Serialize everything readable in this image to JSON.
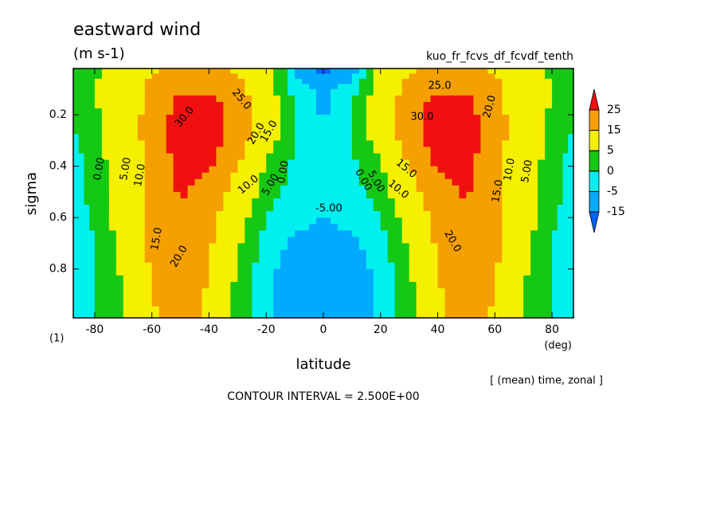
{
  "chart_data": {
    "type": "contour",
    "title": "eastward wind",
    "units": "(m s-1)",
    "subtitle": "kuo_fr_fcvs_df_fcvdf_tenth",
    "x_label": "latitude",
    "y_label": "sigma",
    "x_units": "(deg)",
    "y_units": "(1)",
    "note": "[ (mean) time, zonal ]",
    "contour_interval_text": "CONTOUR INTERVAL = 2.500E+00",
    "xlim": [
      -87.5,
      87.5
    ],
    "ylim": [
      0.99,
      0.02
    ],
    "xticks": [
      -80,
      -60,
      -40,
      -20,
      0,
      20,
      40,
      60,
      80
    ],
    "yticks": [
      0.2,
      0.4,
      0.6,
      0.8
    ],
    "x": [
      -87.5,
      -80,
      -70,
      -60,
      -50,
      -40,
      -30,
      -20,
      -10,
      0,
      10,
      20,
      30,
      40,
      50,
      60,
      70,
      80,
      87.5
    ],
    "y": [
      0.02,
      0.1,
      0.2,
      0.3,
      0.4,
      0.5,
      0.6,
      0.7,
      0.8,
      0.9,
      0.99
    ],
    "z": [
      [
        2,
        4,
        8,
        14,
        17,
        17,
        14,
        8,
        -5,
        -18,
        -8,
        8,
        14,
        17,
        17,
        14,
        8,
        4,
        2
      ],
      [
        2,
        5,
        10,
        17,
        24,
        24,
        18,
        8,
        -2,
        -6,
        -2,
        8,
        18,
        24,
        24,
        17,
        10,
        5,
        2
      ],
      [
        1,
        4,
        10,
        18,
        30,
        30,
        22,
        10,
        0,
        -6,
        0,
        10,
        22,
        30,
        30,
        18,
        10,
        4,
        1
      ],
      [
        -1,
        3,
        10,
        18,
        31,
        30,
        20,
        8,
        0,
        -3,
        0,
        8,
        20,
        30,
        31,
        18,
        10,
        3,
        -1
      ],
      [
        -2,
        2,
        9,
        18,
        28,
        26,
        15,
        4,
        -1,
        -2,
        -1,
        4,
        15,
        26,
        28,
        18,
        9,
        2,
        -2
      ],
      [
        -2,
        2,
        9,
        18,
        26,
        22,
        11,
        2,
        -2,
        -3,
        -2,
        2,
        11,
        22,
        26,
        18,
        9,
        2,
        -2
      ],
      [
        -3,
        1,
        8,
        18,
        23,
        18,
        8,
        0,
        -4,
        -5,
        -4,
        0,
        8,
        18,
        23,
        18,
        8,
        1,
        -3
      ],
      [
        -3,
        0,
        7,
        17,
        21,
        16,
        6,
        -2,
        -6,
        -6,
        -6,
        -2,
        6,
        16,
        21,
        17,
        7,
        0,
        -3
      ],
      [
        -3,
        0,
        6,
        16,
        20,
        15,
        4,
        -3,
        -8,
        -7,
        -8,
        -3,
        4,
        15,
        20,
        16,
        6,
        0,
        -3
      ],
      [
        -3,
        0,
        5,
        15,
        19,
        14,
        3,
        -4,
        -10,
        -8,
        -10,
        -4,
        3,
        14,
        19,
        15,
        5,
        0,
        -3
      ],
      [
        -2,
        0,
        4,
        14,
        18,
        13,
        3,
        -3,
        -9,
        -7,
        -9,
        -3,
        3,
        13,
        18,
        14,
        4,
        0,
        -2
      ]
    ],
    "levels": [
      -15,
      -5,
      0,
      5,
      15,
      25
    ],
    "colors": [
      "#0064ff",
      "#00aaff",
      "#00f0f0",
      "#14c814",
      "#f5f000",
      "#f5a000",
      "#f01010"
    ],
    "contour_labels": [
      "30.0",
      "25.0",
      "20.0",
      "15.0",
      "10.0",
      "5.00",
      "0.00",
      "0.00",
      "5.00",
      "10.0",
      "15.0",
      "20.0",
      "-5.00",
      "25.0",
      "30.0",
      "20.0",
      "15.0",
      "10.0",
      "5.00",
      "0.00",
      "20.0",
      "15.0",
      "10.0",
      "5.00"
    ]
  }
}
